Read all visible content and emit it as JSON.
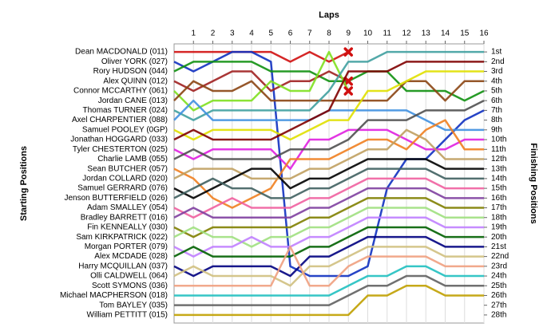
{
  "chart_data": {
    "type": "line",
    "x_label": "Laps",
    "y_label": "Starting Positions",
    "y2_label": "Finishing Positions",
    "x": [
      0,
      1,
      2,
      3,
      4,
      5,
      6,
      7,
      8,
      9,
      10,
      11,
      12,
      13,
      14,
      15,
      16
    ],
    "xlim": [
      0,
      16
    ],
    "xticks": [
      1,
      2,
      3,
      4,
      5,
      6,
      7,
      8,
      9,
      10,
      11,
      12,
      13,
      14,
      15,
      16
    ],
    "ylim": [
      28.5,
      0.5
    ],
    "y2lim": [
      28.5,
      0.5
    ],
    "y2ticks": [
      {
        "value": 1,
        "label": "1st"
      },
      {
        "value": 2,
        "label": "2nd"
      },
      {
        "value": 3,
        "label": "3rd"
      },
      {
        "value": 4,
        "label": "4th"
      },
      {
        "value": 5,
        "label": "5th"
      },
      {
        "value": 6,
        "label": "6th"
      },
      {
        "value": 7,
        "label": "7th"
      },
      {
        "value": 8,
        "label": "8th"
      },
      {
        "value": 9,
        "label": "9th"
      },
      {
        "value": 10,
        "label": "10th"
      },
      {
        "value": 11,
        "label": "11th"
      },
      {
        "value": 12,
        "label": "12th"
      },
      {
        "value": 13,
        "label": "13th"
      },
      {
        "value": 14,
        "label": "14th"
      },
      {
        "value": 15,
        "label": "15th"
      },
      {
        "value": 16,
        "label": "16th"
      },
      {
        "value": 17,
        "label": "17th"
      },
      {
        "value": 18,
        "label": "18th"
      },
      {
        "value": 19,
        "label": "19th"
      },
      {
        "value": 20,
        "label": "20th"
      },
      {
        "value": 21,
        "label": "21st"
      },
      {
        "value": 22,
        "label": "22nd"
      },
      {
        "value": 23,
        "label": "23rd"
      },
      {
        "value": 24,
        "label": "24th"
      },
      {
        "value": 25,
        "label": "25th"
      },
      {
        "value": 26,
        "label": "26th"
      },
      {
        "value": 27,
        "label": "27th"
      },
      {
        "value": 28,
        "label": "28th"
      }
    ],
    "grid": true,
    "series": [
      {
        "name": "Dean MACDONALD (011)",
        "color": "#d01010",
        "retired": true,
        "values": [
          1,
          1,
          1,
          1,
          1,
          1,
          2,
          1,
          2,
          1,
          null,
          null,
          null,
          null,
          null,
          null,
          null
        ]
      },
      {
        "name": "Oliver YORK (027)",
        "color": "#1030c0",
        "values": [
          2,
          3,
          2,
          1,
          1,
          2,
          23,
          24,
          24,
          24,
          23,
          15,
          12,
          12,
          10,
          8,
          7
        ]
      },
      {
        "name": "Rory HUDSON (044)",
        "color": "#109010",
        "values": [
          3,
          2,
          2,
          2,
          2,
          3,
          3,
          3,
          4,
          4,
          3,
          3,
          5,
          5,
          5,
          6,
          5
        ]
      },
      {
        "name": "Alex QUINN (012)",
        "color": "#a02020",
        "retired": true,
        "values": [
          4,
          5,
          4,
          3,
          3,
          5,
          4,
          4,
          3,
          4,
          null,
          null,
          null,
          null,
          null,
          null,
          null
        ]
      },
      {
        "name": "Connor MCCARTHY (061)",
        "color": "#80e020",
        "retired": true,
        "values": [
          5,
          7,
          6,
          6,
          6,
          4,
          5,
          5,
          1,
          5,
          null,
          null,
          null,
          null,
          null,
          null,
          null
        ]
      },
      {
        "name": "Jordan CANE (013)",
        "color": "#8b4513",
        "values": [
          6,
          4,
          5,
          5,
          4,
          6,
          6,
          6,
          6,
          6,
          6,
          6,
          4,
          4,
          6,
          4,
          4
        ]
      },
      {
        "name": "Thomas TURNER (024)",
        "color": "#40a0a0",
        "values": [
          7,
          8,
          7,
          7,
          7,
          7,
          7,
          7,
          5,
          2,
          2,
          1,
          1,
          1,
          1,
          1,
          1
        ]
      },
      {
        "name": "Axel CHARPENTIER (088)",
        "color": "#4090e0",
        "values": [
          8,
          6,
          8,
          8,
          8,
          8,
          8,
          8,
          7,
          7,
          7,
          7,
          7,
          8,
          9,
          9,
          9
        ]
      },
      {
        "name": "Samuel POOLEY (0GP)",
        "color": "#e0e000",
        "values": [
          9,
          10,
          9,
          9,
          9,
          9,
          10,
          9,
          8,
          8,
          5,
          5,
          4,
          3,
          3,
          3,
          3
        ]
      },
      {
        "name": "Jonathan HOGGARD (033)",
        "color": "#800000",
        "values": [
          10,
          9,
          10,
          10,
          10,
          10,
          9,
          8,
          7,
          3,
          3,
          3,
          2,
          2,
          2,
          2,
          2
        ]
      },
      {
        "name": "Tyler CHESTERTON (025)",
        "color": "#e020e0",
        "values": [
          11,
          12,
          11,
          11,
          11,
          11,
          13,
          10,
          10,
          9,
          9,
          9,
          10,
          11,
          11,
          10,
          10
        ]
      },
      {
        "name": "Charlie LAMB (055)",
        "color": "#505050",
        "values": [
          12,
          11,
          12,
          12,
          12,
          12,
          11,
          11,
          11,
          10,
          8,
          8,
          8,
          7,
          7,
          7,
          6
        ]
      },
      {
        "name": "Sean BUTCHER (057)",
        "color": "#f08020",
        "values": [
          13,
          14,
          16,
          17,
          16,
          15,
          12,
          12,
          12,
          11,
          10,
          10,
          11,
          9,
          8,
          11,
          11
        ]
      },
      {
        "name": "Jordan COLLARD (020)",
        "color": "#c0a060",
        "values": [
          14,
          13,
          13,
          13,
          14,
          14,
          14,
          13,
          13,
          12,
          11,
          11,
          9,
          10,
          12,
          12,
          12
        ]
      },
      {
        "name": "Samuel GERRARD (076)",
        "color": "#000000",
        "values": [
          15,
          16,
          15,
          14,
          13,
          13,
          15,
          14,
          14,
          13,
          12,
          12,
          12,
          12,
          13,
          13,
          13
        ]
      },
      {
        "name": "Jenson BUTTERFIELD (026)",
        "color": "#406060",
        "values": [
          16,
          15,
          14,
          15,
          15,
          16,
          16,
          15,
          15,
          14,
          13,
          13,
          13,
          13,
          14,
          14,
          14
        ]
      },
      {
        "name": "Adam SMALLEY (054)",
        "color": "#f060a0",
        "values": [
          17,
          18,
          17,
          16,
          17,
          17,
          17,
          16,
          16,
          15,
          14,
          14,
          14,
          14,
          15,
          15,
          15
        ]
      },
      {
        "name": "Bradley BARRETT (016)",
        "color": "#8040a0",
        "values": [
          18,
          17,
          18,
          18,
          18,
          18,
          18,
          17,
          17,
          16,
          15,
          15,
          15,
          15,
          16,
          16,
          16
        ]
      },
      {
        "name": "Fin KENNEALLY (030)",
        "color": "#808000",
        "values": [
          19,
          20,
          19,
          19,
          19,
          19,
          19,
          18,
          18,
          17,
          16,
          16,
          16,
          16,
          17,
          17,
          17
        ]
      },
      {
        "name": "Sam KIRKPATRICK (022)",
        "color": "#a0e080",
        "values": [
          20,
          19,
          20,
          20,
          21,
          20,
          20,
          19,
          19,
          18,
          17,
          17,
          17,
          17,
          18,
          18,
          18
        ]
      },
      {
        "name": "Morgan PORTER (079)",
        "color": "#c080ff",
        "values": [
          21,
          22,
          21,
          21,
          20,
          21,
          21,
          20,
          20,
          19,
          18,
          18,
          18,
          18,
          19,
          19,
          19
        ]
      },
      {
        "name": "Alex MCDADE (028)",
        "color": "#006000",
        "values": [
          22,
          21,
          22,
          22,
          22,
          22,
          22,
          21,
          21,
          20,
          19,
          19,
          19,
          19,
          20,
          20,
          20
        ]
      },
      {
        "name": "Harry MCQUILLAN (037)",
        "color": "#000080",
        "values": [
          23,
          24,
          23,
          23,
          23,
          23,
          24,
          22,
          22,
          21,
          20,
          20,
          20,
          20,
          21,
          21,
          21
        ]
      },
      {
        "name": "Olli CALDWELL (064)",
        "color": "#d0c080",
        "values": [
          24,
          23,
          24,
          24,
          24,
          24,
          25,
          23,
          23,
          22,
          21,
          21,
          21,
          21,
          22,
          22,
          22
        ]
      },
      {
        "name": "Scott SYMONS (036)",
        "color": "#f0a080",
        "values": [
          25,
          25,
          25,
          25,
          25,
          25,
          21,
          25,
          25,
          23,
          22,
          22,
          22,
          22,
          23,
          23,
          23
        ]
      },
      {
        "name": "Michael MACPHERSON (018)",
        "color": "#20c0c0",
        "values": [
          26,
          26,
          26,
          26,
          26,
          26,
          26,
          26,
          26,
          25,
          24,
          24,
          23,
          23,
          24,
          24,
          24
        ]
      },
      {
        "name": "Tom BAYLEY (035)",
        "color": "#606060",
        "values": [
          27,
          27,
          27,
          27,
          27,
          27,
          27,
          27,
          27,
          26,
          25,
          25,
          24,
          24,
          25,
          25,
          25
        ]
      },
      {
        "name": "William PETTITT (015)",
        "color": "#c0a000",
        "values": [
          28,
          28,
          28,
          28,
          28,
          28,
          28,
          28,
          28,
          28,
          26,
          26,
          25,
          25,
          26,
          26,
          26
        ]
      }
    ]
  }
}
